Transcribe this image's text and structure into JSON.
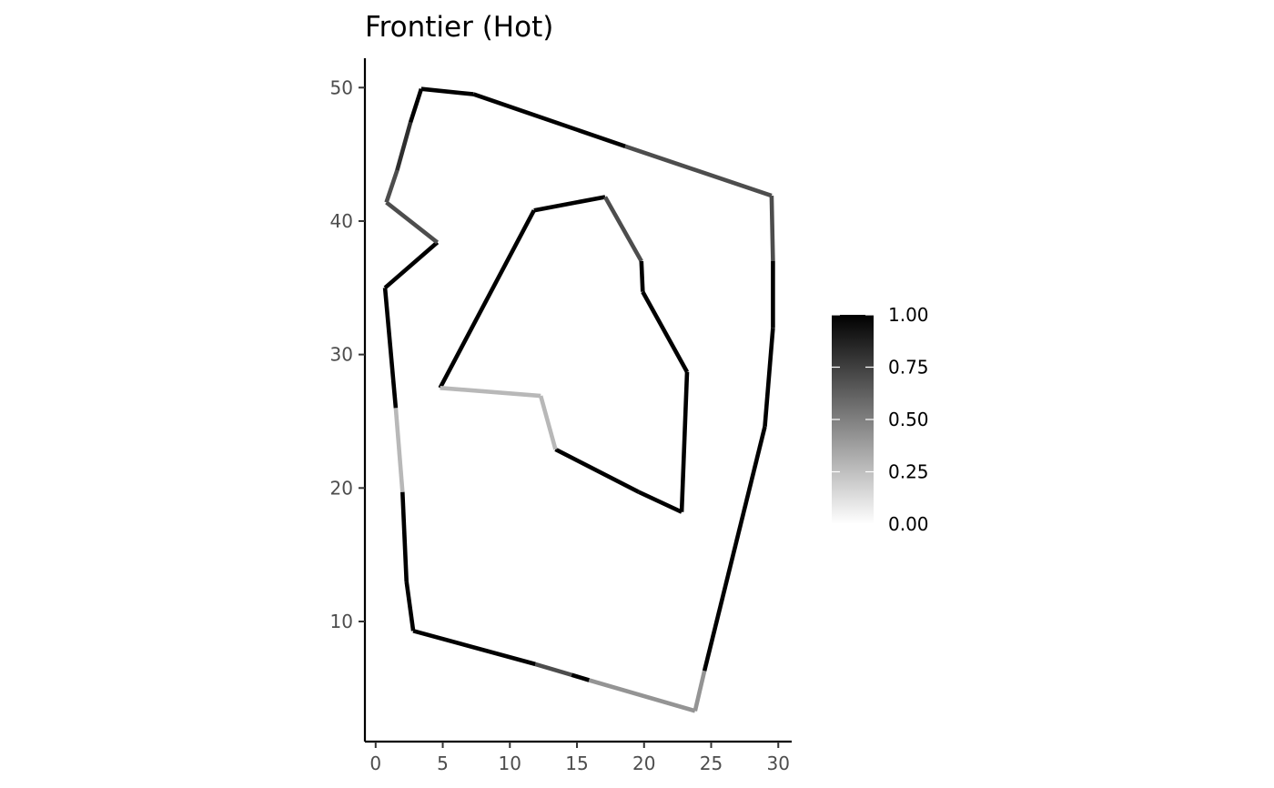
{
  "chart_data": {
    "type": "line",
    "title": "Frontier (Hot)",
    "xlabel": "",
    "ylabel": "",
    "xlim": [
      -0.8,
      31
    ],
    "ylim": [
      1,
      52.2
    ],
    "x_ticks": [
      0,
      5,
      10,
      15,
      20,
      25,
      30
    ],
    "y_ticks": [
      10,
      20,
      30,
      40,
      50
    ],
    "grid": false,
    "color_scale": {
      "name": "",
      "low_color": "#ffffff",
      "high_color": "#000000",
      "limits": [
        0,
        1
      ],
      "ticks": [
        0,
        0.25,
        0.5,
        0.75,
        1
      ],
      "tick_labels": [
        "0.00",
        "0.25",
        "0.50",
        "0.75",
        "1.00"
      ]
    },
    "paths": [
      {
        "segments": [
          {
            "x": [
              0.7,
              4.6
            ],
            "y": [
              35,
              38.4
            ],
            "value": 1.0
          },
          {
            "x": [
              4.6,
              0.8
            ],
            "y": [
              38.4,
              41.4
            ],
            "value": 0.7
          },
          {
            "x": [
              0.8,
              1.6
            ],
            "y": [
              41.4,
              43.8
            ],
            "value": 0.7
          },
          {
            "x": [
              1.6,
              2.6
            ],
            "y": [
              43.8,
              47.4
            ],
            "value": 0.82
          },
          {
            "x": [
              2.6,
              3.4
            ],
            "y": [
              47.4,
              49.9
            ],
            "value": 1.0
          },
          {
            "x": [
              3.4,
              7.3
            ],
            "y": [
              49.9,
              49.5
            ],
            "value": 1.0
          },
          {
            "x": [
              7.3,
              18.6
            ],
            "y": [
              49.5,
              45.6
            ],
            "value": 1.0
          },
          {
            "x": [
              18.6,
              29.5
            ],
            "y": [
              45.6,
              41.9
            ],
            "value": 0.7
          },
          {
            "x": [
              29.5,
              29.6
            ],
            "y": [
              41.9,
              37.0
            ],
            "value": 0.7
          },
          {
            "x": [
              29.6,
              29.6
            ],
            "y": [
              37.0,
              32.0
            ],
            "value": 1.0
          },
          {
            "x": [
              29.6,
              29.0
            ],
            "y": [
              32.0,
              24.6
            ],
            "value": 1.0
          },
          {
            "x": [
              29.0,
              24.5
            ],
            "y": [
              24.6,
              6.3
            ],
            "value": 1.0
          },
          {
            "x": [
              24.5,
              23.8
            ],
            "y": [
              6.3,
              3.3
            ],
            "value": 0.42
          },
          {
            "x": [
              23.8,
              15.9
            ],
            "y": [
              3.3,
              5.6
            ],
            "value": 0.42
          },
          {
            "x": [
              15.9,
              14.6
            ],
            "y": [
              5.6,
              6.0
            ],
            "value": 1.0
          },
          {
            "x": [
              14.6,
              11.9
            ],
            "y": [
              6.0,
              6.8
            ],
            "value": 0.7
          },
          {
            "x": [
              11.9,
              2.8
            ],
            "y": [
              6.8,
              9.3
            ],
            "value": 1.0
          },
          {
            "x": [
              2.8,
              2.3
            ],
            "y": [
              9.3,
              13.0
            ],
            "value": 1.0
          },
          {
            "x": [
              2.3,
              2.0
            ],
            "y": [
              13.0,
              19.7
            ],
            "value": 1.0
          },
          {
            "x": [
              2.0,
              1.5
            ],
            "y": [
              19.7,
              26.0
            ],
            "value": 0.28
          },
          {
            "x": [
              1.5,
              0.7
            ],
            "y": [
              26.0,
              35.0
            ],
            "value": 1.0
          }
        ]
      },
      {
        "segments": [
          {
            "x": [
              4.8,
              11.8
            ],
            "y": [
              27.5,
              40.8
            ],
            "value": 1.0
          },
          {
            "x": [
              11.8,
              17.1
            ],
            "y": [
              40.8,
              41.8
            ],
            "value": 1.0
          },
          {
            "x": [
              17.1,
              19.8
            ],
            "y": [
              41.8,
              37.0
            ],
            "value": 0.7
          },
          {
            "x": [
              19.8,
              19.9
            ],
            "y": [
              37.0,
              34.7
            ],
            "value": 1.0
          },
          {
            "x": [
              19.9,
              23.2
            ],
            "y": [
              34.7,
              28.7
            ],
            "value": 1.0
          },
          {
            "x": [
              23.2,
              22.8
            ],
            "y": [
              28.7,
              18.2
            ],
            "value": 1.0
          },
          {
            "x": [
              22.8,
              19.6
            ],
            "y": [
              18.2,
              19.7
            ],
            "value": 1.0
          },
          {
            "x": [
              19.6,
              13.4
            ],
            "y": [
              19.7,
              22.9
            ],
            "value": 1.0
          },
          {
            "x": [
              13.4,
              12.3
            ],
            "y": [
              22.9,
              26.9
            ],
            "value": 0.28
          },
          {
            "x": [
              12.3,
              4.8
            ],
            "y": [
              26.9,
              27.5
            ],
            "value": 0.28
          }
        ]
      }
    ]
  }
}
